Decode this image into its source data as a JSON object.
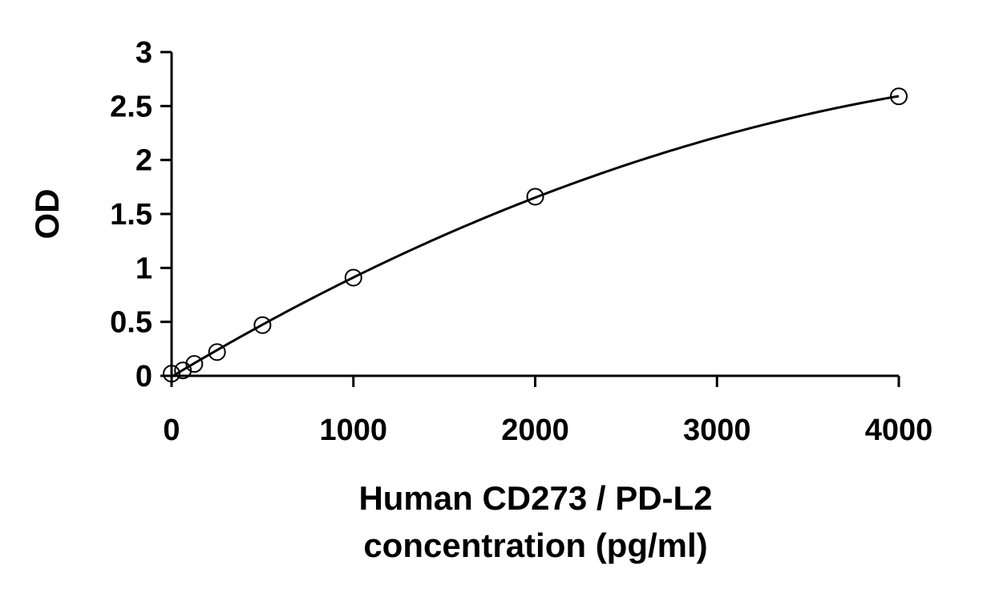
{
  "chart_data": {
    "type": "scatter",
    "title": "",
    "xlabel_lines": [
      "Human CD273 / PD-L2",
      "concentration (pg/ml)"
    ],
    "ylabel": "OD",
    "xlim": [
      0,
      4000
    ],
    "ylim": [
      0,
      3
    ],
    "x_ticks": [
      0,
      1000,
      2000,
      3000,
      4000
    ],
    "x_tick_labels": [
      "0",
      "1000",
      "2000",
      "3000",
      "4000"
    ],
    "y_ticks": [
      0,
      0.5,
      1,
      1.5,
      2,
      2.5,
      3
    ],
    "y_tick_labels": [
      "0",
      "0.5",
      "1",
      "1.5",
      "2",
      "2.5",
      "3"
    ],
    "grid": false,
    "legend": "none",
    "series": [
      {
        "marker": "open-circle",
        "fit_line": "smooth-curve",
        "points": [
          {
            "x": 0,
            "y": 0.02
          },
          {
            "x": 62.5,
            "y": 0.05
          },
          {
            "x": 125,
            "y": 0.11
          },
          {
            "x": 250,
            "y": 0.22
          },
          {
            "x": 500,
            "y": 0.47
          },
          {
            "x": 1000,
            "y": 0.91
          },
          {
            "x": 2000,
            "y": 1.66
          },
          {
            "x": 4000,
            "y": 2.59
          }
        ]
      }
    ],
    "colors": {
      "marks": "#000000",
      "background": "#ffffff"
    }
  }
}
